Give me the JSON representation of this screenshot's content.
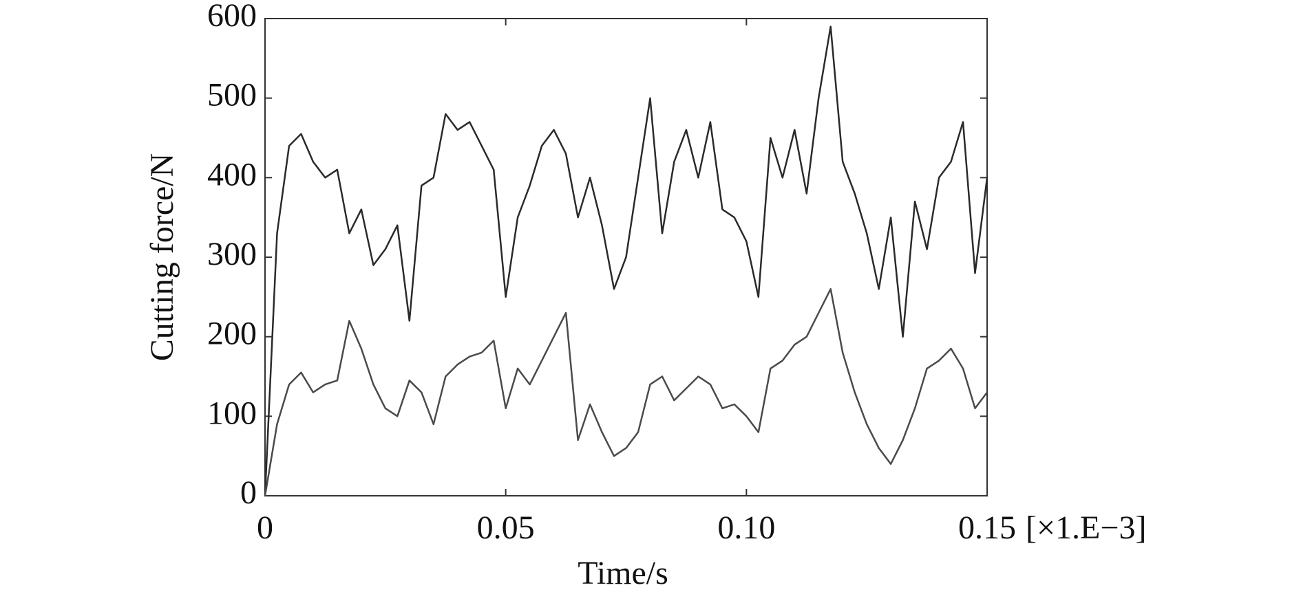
{
  "chart_data": {
    "type": "line",
    "x_label": "Time/s",
    "y_label": "Cutting force/N",
    "x_unit_note": "[×1.E−3]",
    "x": [
      0,
      0.0025,
      0.005,
      0.0075,
      0.01,
      0.0125,
      0.015,
      0.0175,
      0.02,
      0.0225,
      0.025,
      0.0275,
      0.03,
      0.0325,
      0.035,
      0.0375,
      0.04,
      0.0425,
      0.045,
      0.0475,
      0.05,
      0.0525,
      0.055,
      0.0575,
      0.06,
      0.0625,
      0.065,
      0.0675,
      0.07,
      0.0725,
      0.075,
      0.0775,
      0.08,
      0.0825,
      0.085,
      0.0875,
      0.09,
      0.0925,
      0.095,
      0.0975,
      0.1,
      0.1025,
      0.105,
      0.1075,
      0.11,
      0.1125,
      0.115,
      0.1175,
      0.12,
      0.1225,
      0.125,
      0.1275,
      0.13,
      0.1325,
      0.135,
      0.1375,
      0.14,
      0.1425,
      0.145,
      0.1475,
      0.15
    ],
    "series": [
      {
        "color": "#2a2a2a",
        "values": [
          0,
          330,
          440,
          455,
          420,
          400,
          410,
          330,
          360,
          290,
          310,
          340,
          220,
          390,
          400,
          480,
          460,
          470,
          440,
          410,
          250,
          350,
          390,
          440,
          460,
          430,
          350,
          400,
          340,
          260,
          300,
          400,
          500,
          330,
          420,
          460,
          400,
          470,
          360,
          350,
          320,
          250,
          450,
          400,
          460,
          380,
          500,
          590,
          420,
          380,
          330,
          260,
          350,
          200,
          370,
          310,
          400,
          420,
          470,
          280,
          400
        ]
      },
      {
        "color": "#4a4a4a",
        "values": [
          0,
          90,
          140,
          155,
          130,
          140,
          145,
          220,
          185,
          140,
          110,
          100,
          145,
          130,
          90,
          150,
          165,
          175,
          180,
          195,
          110,
          160,
          140,
          170,
          200,
          230,
          70,
          115,
          80,
          50,
          60,
          80,
          140,
          150,
          120,
          135,
          150,
          140,
          110,
          115,
          100,
          80,
          160,
          170,
          190,
          200,
          230,
          260,
          180,
          130,
          90,
          60,
          40,
          70,
          110,
          160,
          170,
          185,
          160,
          110,
          130
        ]
      }
    ],
    "xlim": [
      0,
      0.15
    ],
    "xticks": [
      0,
      0.05,
      {
        "value": 0.1,
        "label": "0.10"
      },
      0.15
    ],
    "ylim": [
      0,
      600
    ],
    "yticks": [
      0,
      100,
      200,
      300,
      400,
      500,
      600
    ]
  }
}
